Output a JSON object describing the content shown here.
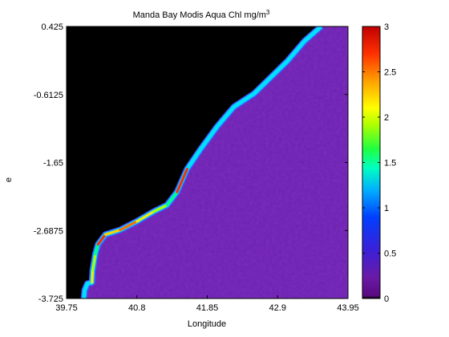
{
  "chart_data": {
    "type": "heatmap",
    "title": "Manda Bay Modis Aqua Chl mg/m",
    "title_superscript": "3",
    "xlabel": "Longitude",
    "ylabel": "e",
    "xlim": [
      39.75,
      43.95
    ],
    "ylim": [
      -3.725,
      0.425
    ],
    "x_ticks": [
      "39.75",
      "40.8",
      "41.85",
      "42.9",
      "43.95"
    ],
    "y_ticks": [
      "0.425",
      "-0.6125",
      "-1.65",
      "-2.6875",
      "-3.725"
    ],
    "land_color": "#000000",
    "colorbar": {
      "range": [
        0,
        3
      ],
      "ticks": [
        "0",
        "0.5",
        "1",
        "1.5",
        "2",
        "2.5",
        "3"
      ],
      "colormap": "hsv",
      "location": "right"
    },
    "coastline": {
      "description_units": "longitude, latitude",
      "points": [
        [
          40.01,
          -3.725
        ],
        [
          40.02,
          -3.6
        ],
        [
          40.06,
          -3.5
        ],
        [
          40.13,
          -3.48
        ],
        [
          40.14,
          -3.3
        ],
        [
          40.18,
          -3.05
        ],
        [
          40.22,
          -2.9
        ],
        [
          40.33,
          -2.75
        ],
        [
          40.55,
          -2.68
        ],
        [
          40.8,
          -2.55
        ],
        [
          41.05,
          -2.4
        ],
        [
          41.25,
          -2.3
        ],
        [
          41.4,
          -2.1
        ],
        [
          41.55,
          -1.75
        ],
        [
          41.75,
          -1.45
        ],
        [
          42.0,
          -1.1
        ],
        [
          42.25,
          -0.8
        ],
        [
          42.55,
          -0.6
        ],
        [
          42.8,
          -0.35
        ],
        [
          43.05,
          -0.1
        ],
        [
          43.3,
          0.2
        ],
        [
          43.55,
          0.425
        ]
      ]
    },
    "coastal_max_chl": 3.0,
    "offshore_chl": 0.2
  }
}
